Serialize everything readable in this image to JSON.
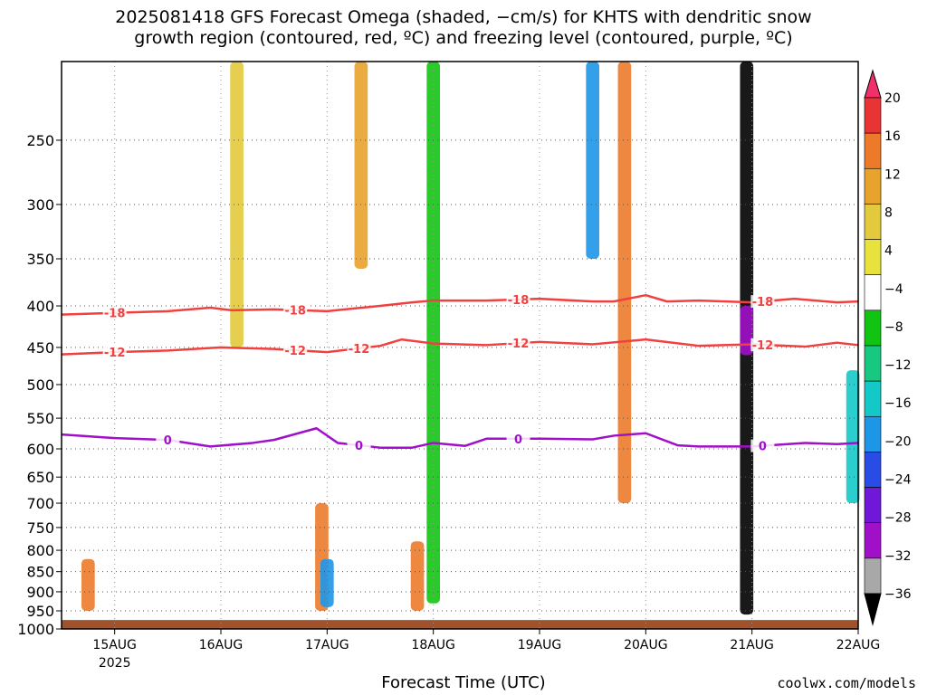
{
  "title_line1": "2025081418 GFS Forecast Omega (shaded, −cm/s) for KHTS with dendritic snow",
  "title_line2": "growth region (contoured, red, ºC) and freezing level (contoured, purple, ºC)",
  "x_axis_label": "Forecast Time (UTC)",
  "credit": "coolwx.com/models",
  "chart_data": {
    "type": "heatmap",
    "x_ticks": [
      {
        "t": 0.5,
        "label": "15AUG"
      },
      {
        "t": 1.5,
        "label": "16AUG"
      },
      {
        "t": 2.5,
        "label": "17AUG"
      },
      {
        "t": 3.5,
        "label": "18AUG"
      },
      {
        "t": 4.5,
        "label": "19AUG"
      },
      {
        "t": 5.5,
        "label": "20AUG"
      },
      {
        "t": 6.5,
        "label": "21AUG"
      },
      {
        "t": 7.5,
        "label": "22AUG"
      }
    ],
    "x_year_label": "2025",
    "x_range_days_from_14aug18z": [
      0,
      7.5
    ],
    "y_ticks": [
      250,
      300,
      350,
      400,
      450,
      500,
      550,
      600,
      650,
      700,
      750,
      800,
      850,
      900,
      950,
      1000
    ],
    "y_range_hPa": [
      200,
      1000
    ],
    "y_scale": "log-pressure",
    "grid": "dotted",
    "colorbar": {
      "labels": [
        "20",
        "16",
        "12",
        "8",
        "4",
        "−4",
        "−8",
        "−12",
        "−16",
        "−20",
        "−24",
        "−28",
        "−32",
        "−36"
      ],
      "colors": [
        "#f0306a",
        "#e83434",
        "#ec7a2a",
        "#e8a32c",
        "#e3c93c",
        "#e8e23c",
        "#ffffff",
        "#12c412",
        "#18c880",
        "#14c8c8",
        "#1e96e8",
        "#2a4ce6",
        "#7018d8",
        "#a010c8",
        "#a8a8a8",
        "#000000"
      ]
    },
    "contours": [
      {
        "label": "-18",
        "color": "#f04040",
        "label_positions": [
          "15AUG",
          "17AUG",
          "19AUG",
          "21AUG"
        ],
        "pressure_hPa": [
          [
            0,
            410
          ],
          [
            0.5,
            408
          ],
          [
            1.0,
            406
          ],
          [
            1.4,
            402
          ],
          [
            1.6,
            405
          ],
          [
            2.0,
            404
          ],
          [
            2.5,
            406
          ],
          [
            3.0,
            400
          ],
          [
            3.3,
            396
          ],
          [
            3.5,
            394
          ],
          [
            4.0,
            394
          ],
          [
            4.5,
            392
          ],
          [
            5.0,
            395
          ],
          [
            5.2,
            395
          ],
          [
            5.5,
            388
          ],
          [
            5.7,
            395
          ],
          [
            6.0,
            394
          ],
          [
            6.5,
            396
          ],
          [
            6.9,
            392
          ],
          [
            7.3,
            396
          ],
          [
            7.5,
            395
          ]
        ]
      },
      {
        "label": "-12",
        "color": "#f04040",
        "label_positions": [
          "15AUG",
          "17AUG",
          "18AUG",
          "19AUG",
          "21AUG"
        ],
        "pressure_hPa": [
          [
            0,
            459
          ],
          [
            0.5,
            456
          ],
          [
            1.0,
            454
          ],
          [
            1.5,
            450
          ],
          [
            2.0,
            452
          ],
          [
            2.5,
            456
          ],
          [
            3.0,
            448
          ],
          [
            3.2,
            440
          ],
          [
            3.5,
            445
          ],
          [
            4.0,
            447
          ],
          [
            4.5,
            443
          ],
          [
            5.0,
            446
          ],
          [
            5.5,
            440
          ],
          [
            6.0,
            448
          ],
          [
            6.5,
            446
          ],
          [
            7.0,
            449
          ],
          [
            7.3,
            444
          ],
          [
            7.5,
            447
          ]
        ]
      },
      {
        "label": "0",
        "color": "#a010c8",
        "label_positions": [
          "16AUG",
          "18AUG",
          "19AUG",
          "21AUG"
        ],
        "pressure_hPa": [
          [
            0,
            576
          ],
          [
            0.5,
            582
          ],
          [
            1.0,
            585
          ],
          [
            1.4,
            596
          ],
          [
            1.8,
            590
          ],
          [
            2.0,
            585
          ],
          [
            2.4,
            566
          ],
          [
            2.6,
            590
          ],
          [
            3.0,
            598
          ],
          [
            3.3,
            598
          ],
          [
            3.5,
            590
          ],
          [
            3.8,
            595
          ],
          [
            4.0,
            583
          ],
          [
            4.5,
            583
          ],
          [
            5.0,
            584
          ],
          [
            5.2,
            578
          ],
          [
            5.5,
            574
          ],
          [
            5.8,
            594
          ],
          [
            6.0,
            596
          ],
          [
            6.5,
            596
          ],
          [
            7.0,
            590
          ],
          [
            7.3,
            592
          ],
          [
            7.5,
            590
          ]
        ]
      }
    ],
    "shaded_features": [
      {
        "t": 0.25,
        "p_top": 820,
        "p_bot": 950,
        "value": 12
      },
      {
        "t": 1.65,
        "p_top": 200,
        "p_bot": 450,
        "value": 4
      },
      {
        "t": 2.45,
        "p_top": 700,
        "p_bot": 950,
        "value": 12
      },
      {
        "t": 2.5,
        "p_top": 820,
        "p_bot": 940,
        "value": -16
      },
      {
        "t": 2.82,
        "p_top": 200,
        "p_bot": 360,
        "value": 8
      },
      {
        "t": 3.35,
        "p_top": 780,
        "p_bot": 950,
        "value": 12
      },
      {
        "t": 3.5,
        "p_top": 200,
        "p_bot": 930,
        "value": -8
      },
      {
        "t": 5.0,
        "p_top": 200,
        "p_bot": 350,
        "value": -16
      },
      {
        "t": 5.3,
        "p_top": 200,
        "p_bot": 700,
        "value": 12
      },
      {
        "t": 6.45,
        "p_top": 200,
        "p_bot": 960,
        "value": -36
      },
      {
        "t": 6.45,
        "p_top": 400,
        "p_bot": 460,
        "value": -28
      },
      {
        "t": 7.45,
        "p_top": 480,
        "p_bot": 700,
        "value": -12
      }
    ]
  }
}
